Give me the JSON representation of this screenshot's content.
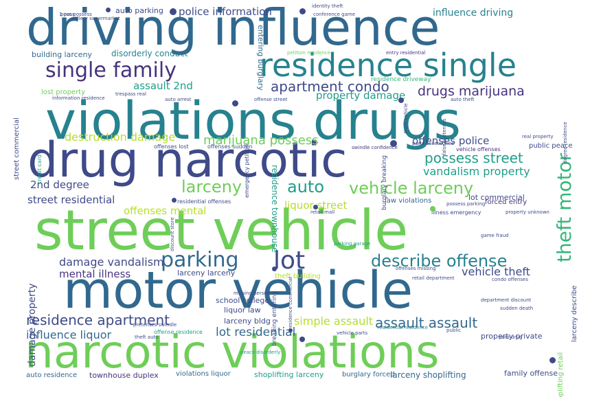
{
  "wordcloud": {
    "colors": {
      "purple": "#46337e",
      "navy": "#3e4a89",
      "blue": "#31688e",
      "teal": "#26828e",
      "aqua": "#1f9e89",
      "green": "#35b779",
      "lime": "#6ece58",
      "yellow": "#b5de2b"
    },
    "words": [
      "driving influence",
      "violations drugs",
      "drug narcotic",
      "street vehicle",
      "motor vehicle",
      "narcotic violations",
      "residence single",
      "single family",
      "apartment condo",
      "drugs marijuana",
      "property damage",
      "assault 2nd",
      "destruction damage",
      "marijuana possess",
      "offenses police",
      "possess street",
      "vandalism property",
      "2nd degree",
      "larceny",
      "auto",
      "vehicle larceny",
      "street residential",
      "offenses mental",
      "liquor street",
      "parking",
      "lot",
      "describe offense",
      "damage vandalism",
      "mental illness",
      "vehicle theft",
      "residence apartment",
      "assault assault",
      "simple assault",
      "influence liquor",
      "lot residential",
      "shoplifting larceny",
      "larceny shoplifting",
      "townhouse duplex",
      "auto residence",
      "family offense",
      "violations liquor",
      "burglary forced",
      "police information",
      "influence driving",
      "building larceny",
      "disorderly conduct",
      "auto parking",
      "theft motor",
      "damage property",
      "residence townhouse",
      "school college",
      "liquor law",
      "larceny bldg",
      "larceny larceny",
      "theft building",
      "property private",
      "lot commercial",
      "forced entry",
      "public peace",
      "law violations",
      "entering burglary",
      "residence driveway",
      "lost property",
      "street commercial",
      "identity theft",
      "conference game",
      "petition residence",
      "entry residential",
      "residential offenses",
      "offenses lost",
      "offenses sudden",
      "offense street",
      "auto theft",
      "auto arrest",
      "information residence",
      "trespass real",
      "credit card",
      "real property",
      "vehicle offenses",
      "parts accessories",
      "retail mall",
      "possess parking",
      "illness emergency",
      "retail department",
      "department discount",
      "sudden death",
      "condo offenses",
      "missing person",
      "offense residence",
      "vehicle parts",
      "theft auto",
      "peace disorderly",
      "residential residence",
      "parking garage",
      "offenses missing",
      "larceny describe",
      "shoplifting retail",
      "breaking entering",
      "burglary breaking",
      "emergency petition",
      "swindle confidence",
      "pretenses swindle",
      "discount store",
      "game fraud",
      "property unknown",
      "false pretenses",
      "theft vehicle",
      "degree residence",
      "residence commercial",
      "poss drug",
      "public",
      "1 poss",
      "poss possess",
      "gallery supermarket",
      "assault",
      "arrest"
    ]
  }
}
